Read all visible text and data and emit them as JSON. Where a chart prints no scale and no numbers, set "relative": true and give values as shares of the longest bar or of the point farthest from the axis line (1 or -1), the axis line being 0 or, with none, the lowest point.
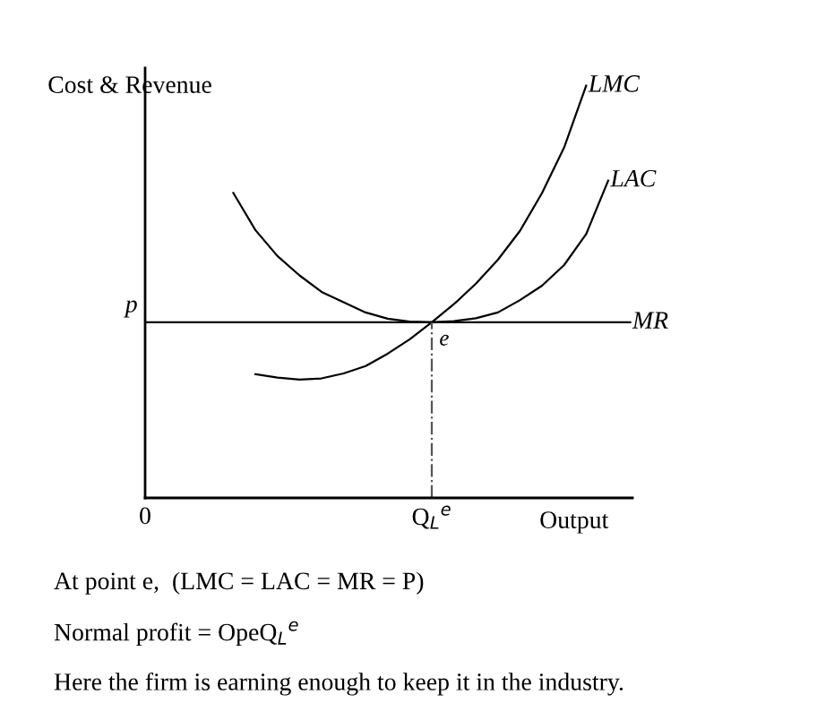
{
  "chart_data": {
    "type": "line",
    "relative": true,
    "ylabel": "Cost & Revenue",
    "xlabel": "Output",
    "categories": [
      "0",
      null,
      null,
      null,
      null,
      null,
      null,
      null,
      null,
      null,
      null,
      null,
      null,
      "Q$_{L}$$^{e}$",
      null,
      null,
      null,
      null,
      null,
      null,
      null,
      null,
      null
    ],
    "series": [
      {
        "name": "LMC",
        "color": "#000000",
        "values": [
          null,
          null,
          null,
          null,
          null,
          0.3,
          0.292,
          0.287,
          0.29,
          0.302,
          0.32,
          0.35,
          0.385,
          0.426,
          0.47,
          0.52,
          0.578,
          0.648,
          0.74,
          0.85,
          1.0,
          null,
          null
        ]
      },
      {
        "name": "LAC",
        "color": "#000000",
        "values": [
          null,
          null,
          null,
          null,
          0.74,
          0.65,
          0.587,
          0.54,
          0.5,
          0.475,
          0.45,
          0.435,
          0.428,
          0.426,
          0.429,
          0.436,
          0.45,
          0.48,
          0.515,
          0.565,
          0.64,
          0.77,
          null
        ]
      },
      {
        "name": "MR",
        "color": "#000000",
        "values": [
          0.426,
          0.426,
          0.426,
          0.426,
          0.426,
          0.426,
          0.426,
          0.426,
          0.426,
          0.426,
          0.426,
          0.426,
          0.426,
          0.426,
          0.426,
          0.426,
          0.426,
          0.426,
          0.426,
          0.426,
          0.426,
          0.426,
          0.426
        ]
      }
    ],
    "ref_lines": [
      {
        "axis": "x",
        "value": "Q$_{L}$$^{e}$",
        "label": null,
        "line_style": "dashed",
        "color": "#555555"
      }
    ],
    "annotations": [
      {
        "text": "p",
        "x": "0",
        "y": 0.426
      },
      {
        "text": "e",
        "x": "Q$_{L}$$^{e}$",
        "y": 0.426
      },
      "At point e,  (LMC = LAC = MR = P)",
      "Normal profit = OpeQ$_{L}$$^{e}$",
      "Here the firm is earning enough to keep it in the industry."
    ],
    "grid": false,
    "marker": "none",
    "line_style": "solid"
  }
}
